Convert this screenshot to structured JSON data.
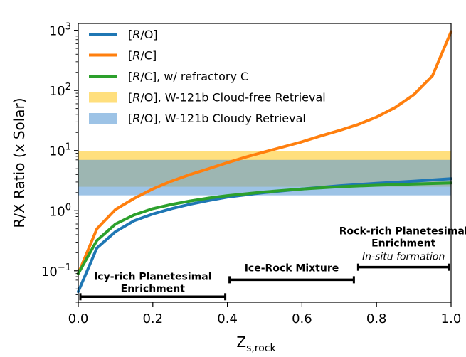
{
  "chart_data": {
    "type": "line",
    "title": "",
    "xlabel": "Z",
    "xlabel_sub": "s,rock",
    "ylabel": "R/X Ratio (x Solar)",
    "xlim": [
      0.0,
      1.0
    ],
    "ylim": [
      0.03,
      1300
    ],
    "yscale": "log",
    "xticks": [
      {
        "value": 0.0,
        "label": "0.0"
      },
      {
        "value": 0.2,
        "label": "0.2"
      },
      {
        "value": 0.4,
        "label": "0.4"
      },
      {
        "value": 0.6,
        "label": "0.6"
      },
      {
        "value": 0.8,
        "label": "0.8"
      },
      {
        "value": 1.0,
        "label": "1.0"
      }
    ],
    "yticks": [
      {
        "value": 0.1,
        "base": "10",
        "exp": "−1"
      },
      {
        "value": 1,
        "base": "10",
        "exp": "0"
      },
      {
        "value": 10,
        "base": "10",
        "exp": "1"
      },
      {
        "value": 100,
        "base": "10",
        "exp": "2"
      },
      {
        "value": 1000,
        "base": "10",
        "exp": "3"
      }
    ],
    "legend_position": "top-left",
    "series": [
      {
        "name": "[R/O]",
        "color": "#1f77b4",
        "x": [
          0.0,
          0.05,
          0.1,
          0.15,
          0.2,
          0.25,
          0.3,
          0.35,
          0.4,
          0.5,
          0.6,
          0.7,
          0.8,
          0.9,
          1.0
        ],
        "y": [
          0.045,
          0.24,
          0.45,
          0.68,
          0.88,
          1.08,
          1.28,
          1.48,
          1.68,
          2.0,
          2.3,
          2.6,
          2.85,
          3.1,
          3.4
        ]
      },
      {
        "name": "[R/C]",
        "color": "#ff7f0e",
        "x": [
          0.0,
          0.05,
          0.1,
          0.15,
          0.2,
          0.25,
          0.3,
          0.35,
          0.4,
          0.45,
          0.5,
          0.55,
          0.6,
          0.65,
          0.7,
          0.75,
          0.8,
          0.85,
          0.9,
          0.95,
          1.0
        ],
        "y": [
          0.09,
          0.5,
          1.05,
          1.6,
          2.3,
          3.1,
          4.0,
          5.0,
          6.3,
          7.8,
          9.5,
          11.5,
          14.0,
          17.5,
          21.5,
          27.0,
          36.0,
          52.0,
          85.0,
          175.0,
          950.0
        ]
      },
      {
        "name": "[R/C], w/ refractory C",
        "color": "#2ca02c",
        "x": [
          0.0,
          0.05,
          0.1,
          0.15,
          0.2,
          0.25,
          0.3,
          0.35,
          0.4,
          0.5,
          0.6,
          0.7,
          0.8,
          0.9,
          1.0
        ],
        "y": [
          0.09,
          0.32,
          0.6,
          0.85,
          1.08,
          1.27,
          1.45,
          1.62,
          1.78,
          2.05,
          2.3,
          2.5,
          2.65,
          2.78,
          2.9
        ]
      }
    ],
    "bands": [
      {
        "name": "[R/O], W-121b Cloud-free Retrieval",
        "color": "#ffd966",
        "opacity": 0.85,
        "y0": 2.5,
        "y1": 9.8
      },
      {
        "name": "[R/O], W-121b Cloudy Retrieval",
        "color": "#5b9bd5",
        "opacity": 0.6,
        "y0": 1.8,
        "y1": 7.0
      }
    ],
    "regions": [
      {
        "x0": 0.0,
        "x1": 0.4,
        "y": 0.037,
        "lines": [
          "Icy-rich Planetesimal",
          "Enrichment"
        ],
        "sub": ""
      },
      {
        "x0": 0.4,
        "x1": 0.745,
        "y": 0.071,
        "lines": [
          "Ice-Rock Mixture"
        ],
        "sub": ""
      },
      {
        "x0": 0.745,
        "x1": 1.0,
        "y": 0.115,
        "lines": [
          "Rock-rich Planetesimal",
          "Enrichment"
        ],
        "sub": "In-situ formation"
      }
    ]
  }
}
